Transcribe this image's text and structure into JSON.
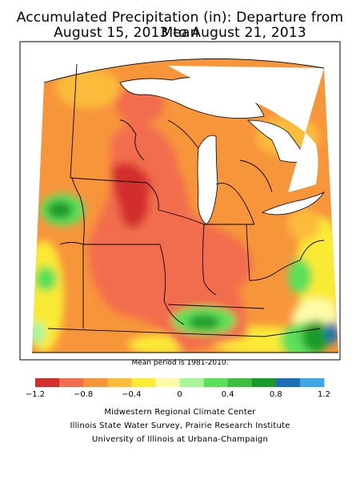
{
  "title_line1": "Accumulated Precipitation (in): Departure from Mean",
  "title_line2": "August 15, 2013 to August 21, 2013",
  "mean_period_note": "Mean period is 1981-2010.",
  "legend": {
    "ticks": [
      "−1.2",
      "−0.8",
      "−0.4",
      "0",
      "0.4",
      "0.8",
      "1.2"
    ],
    "colors": [
      "#d32f2f",
      "#f26d4d",
      "#f7953b",
      "#fbbc3a",
      "#fbea36",
      "#fdfba8",
      "#a9f59c",
      "#5be05a",
      "#3ebe3e",
      "#1a9a2a",
      "#1f6db5",
      "#3fa7e8"
    ]
  },
  "map_colors": {
    "darkest_deficit": "#d32f2f",
    "deficit": "#f26d4d",
    "moderate": "#f7953b",
    "slight": "#fbbc3a",
    "near_zero": "#fbea36",
    "neutral": "#fdfba8",
    "light_surplus": "#a9f59c",
    "surplus": "#5be05a",
    "strong_surplus": "#1a9a2a",
    "wet": "#1f6db5",
    "water": "#ffffff"
  },
  "credits": [
    "Midwestern Regional Climate Center",
    "Illinois State Water Survey, Prairie Research Institute",
    "University of Illinois at Urbana-Champaign"
  ]
}
